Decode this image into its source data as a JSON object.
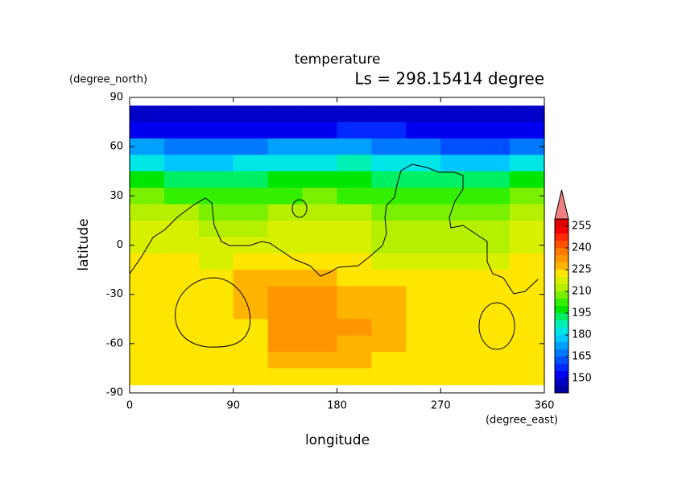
{
  "chart_data": {
    "type": "contour",
    "title": "temperature",
    "subtitle": "Ls = 298.15414 degree",
    "x_label": "longitude",
    "y_label": "latitude",
    "x_unit": "(degree_east)",
    "y_unit": "(degree_north)",
    "xlim": [
      0,
      360
    ],
    "ylim": [
      -90,
      90
    ],
    "xticks": [
      0,
      90,
      180,
      270,
      360
    ],
    "yticks": [
      -90,
      -60,
      -30,
      0,
      30,
      60,
      90
    ],
    "x": [
      15,
      45,
      75,
      105,
      135,
      165,
      195,
      225,
      255,
      285,
      315,
      345
    ],
    "y": [
      80,
      70,
      60,
      50,
      40,
      30,
      20,
      10,
      0,
      -10,
      -20,
      -30,
      -40,
      -50,
      -60,
      -70,
      -80
    ],
    "z": [
      [
        147,
        147,
        147,
        147,
        147,
        147,
        147,
        147,
        147,
        147,
        147,
        147
      ],
      [
        152,
        150,
        150,
        152,
        152,
        153,
        155,
        155,
        152,
        150,
        150,
        152
      ],
      [
        170,
        165,
        165,
        168,
        170,
        172,
        172,
        168,
        165,
        160,
        160,
        165
      ],
      [
        180,
        178,
        178,
        180,
        182,
        183,
        185,
        182,
        180,
        178,
        178,
        180
      ],
      [
        195,
        192,
        192,
        193,
        195,
        196,
        196,
        194,
        192,
        190,
        192,
        195
      ],
      [
        205,
        202,
        200,
        202,
        203,
        205,
        203,
        200,
        200,
        200,
        202,
        205
      ],
      [
        210,
        210,
        208,
        208,
        210,
        210,
        210,
        208,
        208,
        207,
        208,
        210
      ],
      [
        215,
        215,
        212,
        213,
        215,
        215,
        215,
        212,
        210,
        210,
        212,
        215
      ],
      [
        218,
        218,
        216,
        218,
        218,
        218,
        216,
        214,
        212,
        212,
        214,
        216
      ],
      [
        220,
        220,
        218,
        222,
        222,
        222,
        220,
        218,
        216,
        215,
        218,
        220
      ],
      [
        222,
        222,
        222,
        225,
        226,
        226,
        224,
        222,
        221,
        220,
        221,
        222
      ],
      [
        223,
        223,
        224,
        228,
        230,
        230,
        228,
        226,
        224,
        224,
        222,
        222
      ],
      [
        223,
        223,
        224,
        228,
        231,
        231,
        229,
        226,
        224,
        224,
        223,
        223
      ],
      [
        222,
        222,
        223,
        224,
        231,
        231,
        230,
        226,
        224,
        224,
        223,
        222
      ],
      [
        222,
        222,
        222,
        224,
        230,
        230,
        228,
        225,
        223,
        223,
        222,
        222
      ],
      [
        222,
        222,
        222,
        224,
        228,
        228,
        226,
        224,
        223,
        223,
        222,
        222
      ],
      [
        222,
        222,
        222,
        222,
        224,
        224,
        223,
        222,
        222,
        222,
        222,
        222
      ]
    ],
    "levels": [
      140,
      145,
      150,
      155,
      160,
      165,
      170,
      175,
      180,
      185,
      190,
      195,
      200,
      205,
      210,
      215,
      220,
      225,
      230,
      235,
      240,
      245,
      250,
      255,
      260
    ],
    "colors": [
      "#0000a0",
      "#0000c8",
      "#0000f0",
      "#0028ff",
      "#0050ff",
      "#0078ff",
      "#00a0ff",
      "#00c8ff",
      "#00e6e6",
      "#00f0b4",
      "#00f064",
      "#00e600",
      "#32f000",
      "#78f000",
      "#b4f000",
      "#d7f000",
      "#ffe600",
      "#ffb400",
      "#ff9600",
      "#ff7800",
      "#ff5000",
      "#ff2800",
      "#f00000",
      "#dc0000"
    ],
    "over_color": "#f08080",
    "colorbar_ticks": [
      150,
      165,
      180,
      195,
      210,
      225,
      240,
      255
    ]
  }
}
